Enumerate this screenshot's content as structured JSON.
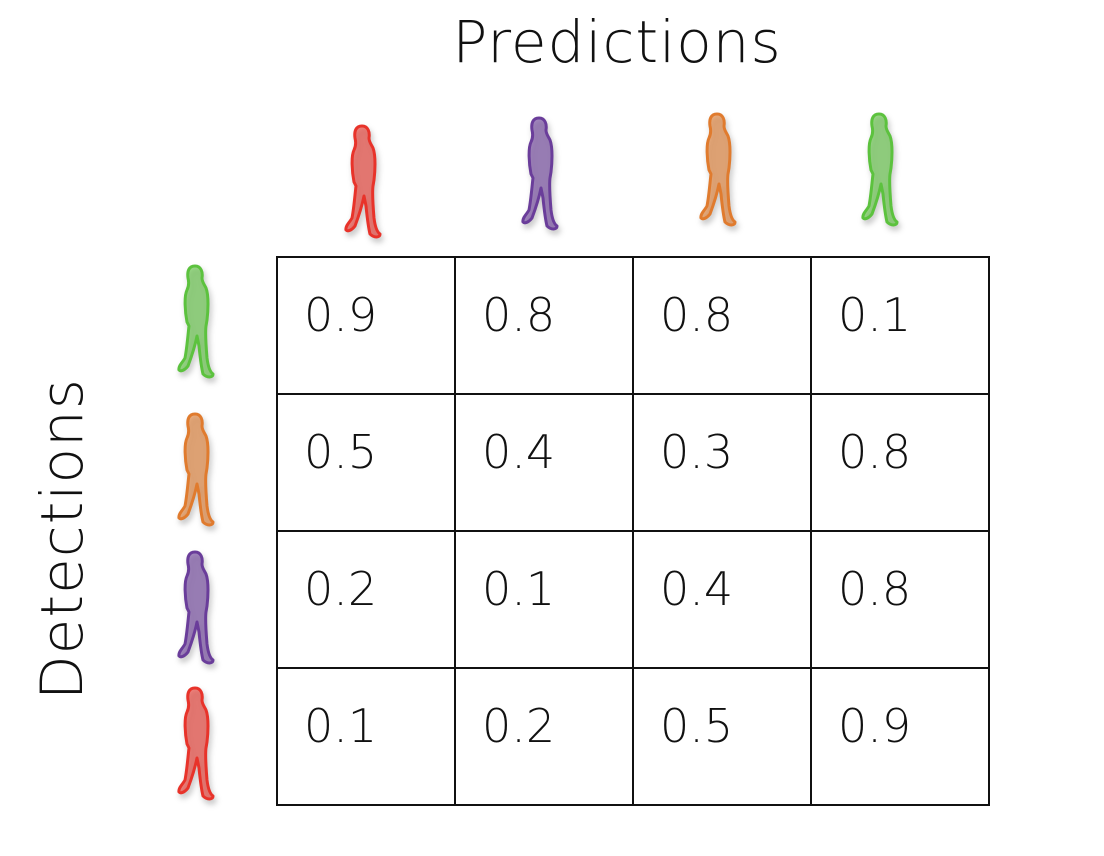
{
  "title": "Predictions",
  "ylabel": "Detections",
  "colors": {
    "red": "#e8332a",
    "purple": "#6a3d9a",
    "orange": "#e07b2e",
    "green": "#5cc23e"
  },
  "columns": [
    {
      "icon": "person-red-icon",
      "color": "red"
    },
    {
      "icon": "person-purple-icon",
      "color": "purple"
    },
    {
      "icon": "person-orange-icon",
      "color": "orange"
    },
    {
      "icon": "person-green-icon",
      "color": "green"
    }
  ],
  "rows": [
    {
      "icon": "person-green-icon",
      "color": "green",
      "values": [
        "0.9",
        "0.8",
        "0.8",
        "0.1"
      ]
    },
    {
      "icon": "person-orange-icon",
      "color": "orange",
      "values": [
        "0.5",
        "0.4",
        "0.3",
        "0.8"
      ]
    },
    {
      "icon": "person-purple-icon",
      "color": "purple",
      "values": [
        "0.2",
        "0.1",
        "0.4",
        "0.8"
      ]
    },
    {
      "icon": "person-red-icon",
      "color": "red",
      "values": [
        "0.1",
        "0.2",
        "0.5",
        "0.9"
      ]
    }
  ]
}
